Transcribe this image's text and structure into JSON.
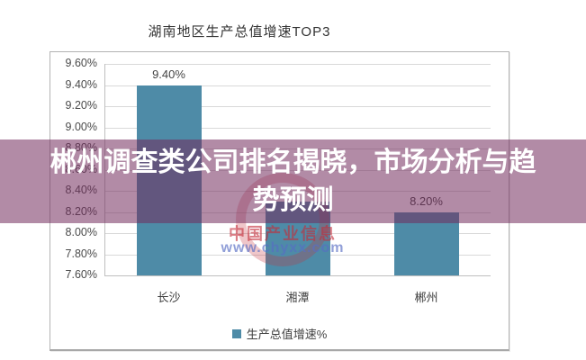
{
  "page": {
    "title": "湖南地区生产总值增速TOP3"
  },
  "overlay": {
    "headline": "郴州调查类公司排名揭晓，市场分析与趋势预测",
    "lines": [
      "郴州调查类公司排名揭晓，市场分析与趋",
      "势预测"
    ]
  },
  "watermark": {
    "brand": "中国产业信息",
    "url": "www.chyxx.com"
  },
  "legend": {
    "label": "生产总值增速%"
  },
  "colors": {
    "bar": "#4e8ba7",
    "band": "rgba(115,44,93,0.55)",
    "watermark_red": "rgba(195,45,58,0.62)",
    "watermark_blue": "rgba(88,110,196,0.66)",
    "gridline": "#d9d9d9"
  },
  "chart_data": {
    "type": "bar",
    "title": "湖南地区生产总值增速TOP3",
    "categories": [
      "长沙",
      "湘潭",
      "郴州"
    ],
    "values": [
      9.4,
      8.3,
      8.2
    ],
    "data_labels": [
      "9.40%",
      "",
      "8.20%"
    ],
    "yticks": [
      "9.60%",
      "9.40%",
      "9.20%",
      "9.00%",
      "8.80%",
      "8.60%",
      "8.40%",
      "8.20%",
      "8.00%",
      "7.80%",
      "7.60%"
    ],
    "ylim": [
      7.6,
      9.6
    ],
    "xlabel": "",
    "ylabel": "",
    "grid": true,
    "legend": [
      "生产总值增速%"
    ],
    "legend_position": "bottom"
  }
}
